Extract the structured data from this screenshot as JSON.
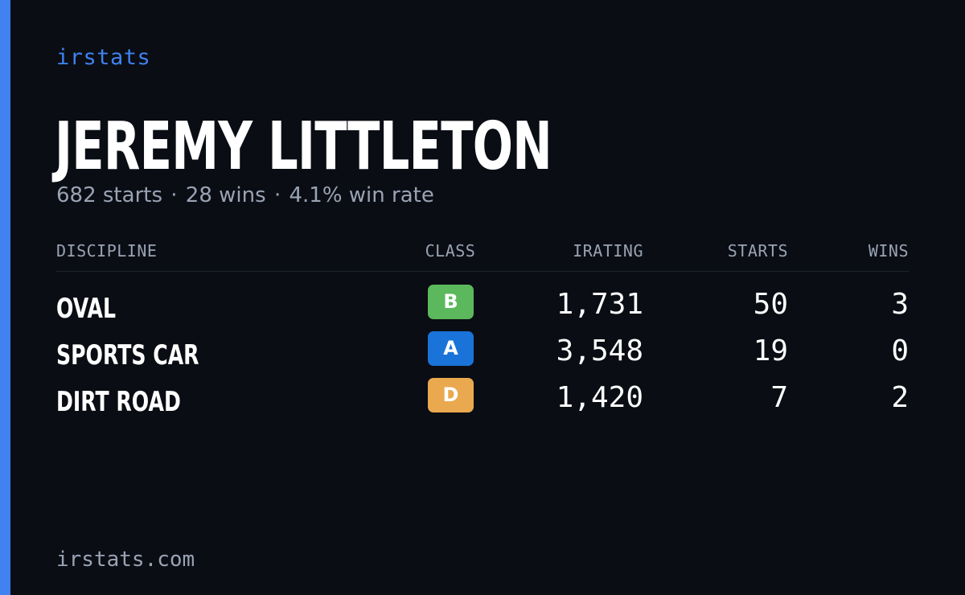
{
  "brand": "irstats",
  "player": {
    "name": "JEREMY LITTLETON",
    "starts_text": "682 starts",
    "wins_text": "28 wins",
    "winrate_text": "4.1% win rate",
    "separator": "·"
  },
  "table": {
    "headers": {
      "discipline": "DISCIPLINE",
      "class": "CLASS",
      "irating": "IRATING",
      "starts": "STARTS",
      "wins": "WINS"
    },
    "rows": [
      {
        "discipline": "OVAL",
        "class": "B",
        "class_color": "#5cb85c",
        "irating": "1,731",
        "starts": "50",
        "wins": "3"
      },
      {
        "discipline": "SPORTS CAR",
        "class": "A",
        "class_color": "#1a73d9",
        "irating": "3,548",
        "starts": "19",
        "wins": "0"
      },
      {
        "discipline": "DIRT ROAD",
        "class": "D",
        "class_color": "#eaa94f",
        "irating": "1,420",
        "starts": "7",
        "wins": "2"
      }
    ]
  },
  "footer": "irstats.com",
  "colors": {
    "accent": "#3f82f0",
    "background": "#0a0d14",
    "muted": "#9aa3b4"
  }
}
